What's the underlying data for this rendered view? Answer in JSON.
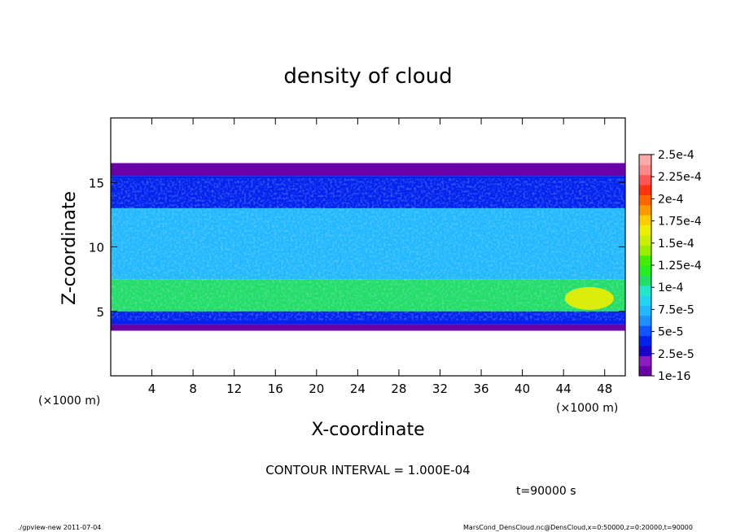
{
  "chart_data": {
    "type": "heatmap",
    "title": "density of cloud",
    "xlabel": "X-coordinate",
    "ylabel": "Z-coordinate",
    "x_unit_left": "(×1000 m)",
    "x_unit_right": "(×1000 m)",
    "xlim": [
      0,
      50
    ],
    "ylim": [
      0,
      20
    ],
    "x_ticks": [
      4,
      8,
      12,
      16,
      20,
      24,
      28,
      32,
      36,
      40,
      44,
      48
    ],
    "y_ticks": [
      5,
      10,
      15
    ],
    "colorbar": {
      "labels": [
        "1e-16",
        "2.5e-5",
        "5e-5",
        "7.5e-5",
        "1e-4",
        "1.25e-4",
        "1.5e-4",
        "1.75e-4",
        "2e-4",
        "2.25e-4",
        "2.5e-4"
      ],
      "colors": [
        "#6a00a8",
        "#8a1cc0",
        "#1a00c8",
        "#0022ee",
        "#1155ff",
        "#1e90ff",
        "#22b8ff",
        "#22d4f0",
        "#25e6c8",
        "#22dd66",
        "#22ee22",
        "#44ee00",
        "#99ee00",
        "#ccee00",
        "#eeee00",
        "#ffcc00",
        "#ff9900",
        "#ff6600",
        "#ff3311",
        "#ff5555",
        "#ff8888",
        "#ffaaaa"
      ]
    },
    "regions": [
      {
        "name": "no cloud top",
        "z": [
          16.5,
          20
        ],
        "density": 0
      },
      {
        "name": "upper purple layer",
        "z": [
          15.5,
          16.5
        ],
        "density": 1e-16
      },
      {
        "name": "upper blue band",
        "z": [
          13,
          15.5
        ],
        "density": 3.5e-05
      },
      {
        "name": "mid cyan cloud",
        "z": [
          7.5,
          13
        ],
        "density": 7.5e-05
      },
      {
        "name": "lower green layer",
        "z": [
          5,
          7.5
        ],
        "density": 0.00011
      },
      {
        "name": "bottom blue band",
        "z": [
          4,
          5
        ],
        "density": 4e-05
      },
      {
        "name": "bottom purple layer",
        "z": [
          3.5,
          4
        ],
        "density": 1e-16
      },
      {
        "name": "no cloud bottom",
        "z": [
          0,
          3.5
        ],
        "density": 0
      }
    ],
    "hotspot": {
      "x": 46.5,
      "z": 6,
      "density": 0.00016
    }
  },
  "annotations": {
    "contour_interval": "CONTOUR INTERVAL = 1.000E-04",
    "time": "t=90000 s",
    "footer_left": "./gpview-new  2011-07-04",
    "footer_right": "MarsCond_DensCloud.nc@DensCloud,x=0:50000,z=0:20000,t=90000"
  }
}
